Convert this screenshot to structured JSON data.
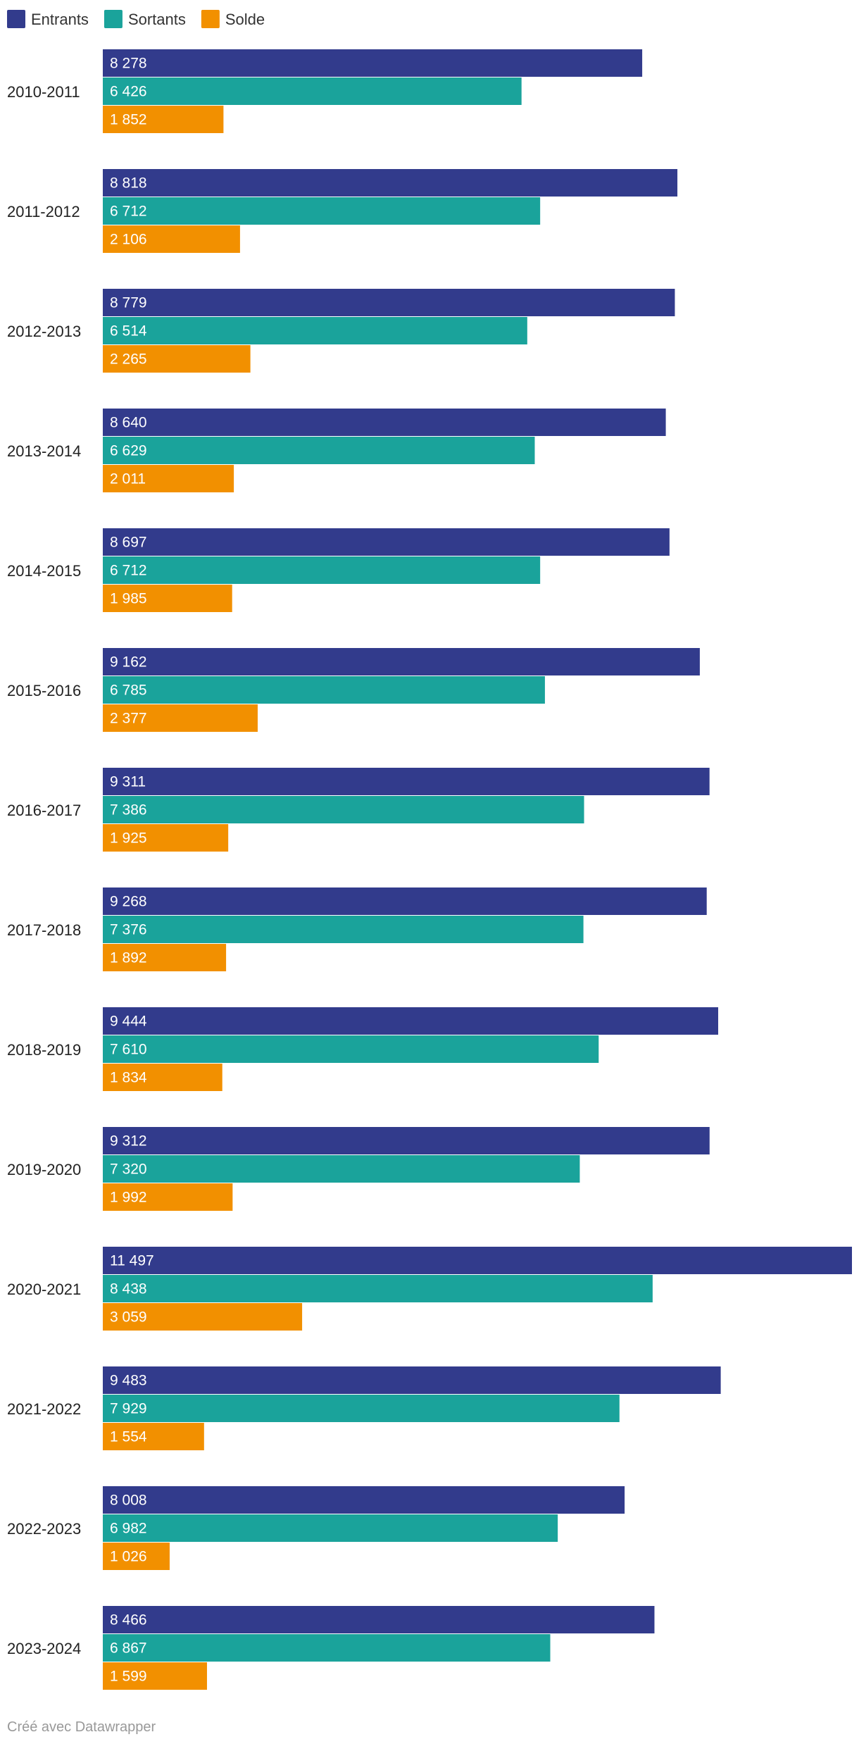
{
  "chart_data": {
    "type": "bar",
    "orientation": "horizontal",
    "categories": [
      "2010-2011",
      "2011-2012",
      "2012-2013",
      "2013-2014",
      "2014-2015",
      "2015-2016",
      "2016-2017",
      "2017-2018",
      "2018-2019",
      "2019-2020",
      "2020-2021",
      "2021-2022",
      "2022-2023",
      "2023-2024"
    ],
    "series": [
      {
        "name": "Entrants",
        "color": "#323b8c",
        "values": [
          8278,
          8818,
          8779,
          8640,
          8697,
          9162,
          9311,
          9268,
          9444,
          9312,
          11497,
          9483,
          8008,
          8466
        ],
        "labels": [
          "8 278",
          "8 818",
          "8 779",
          "8 640",
          "8 697",
          "9 162",
          "9 311",
          "9 268",
          "9 444",
          "9 312",
          "11 497",
          "9 483",
          "8 008",
          "8 466"
        ]
      },
      {
        "name": "Sortants",
        "color": "#1aa39b",
        "values": [
          6426,
          6712,
          6514,
          6629,
          6712,
          6785,
          7386,
          7376,
          7610,
          7320,
          8438,
          7929,
          6982,
          6867
        ],
        "labels": [
          "6 426",
          "6 712",
          "6 514",
          "6 629",
          "6 712",
          "6 785",
          "7 386",
          "7 376",
          "7 610",
          "7 320",
          "8 438",
          "7 929",
          "6 982",
          "6 867"
        ]
      },
      {
        "name": "Solde",
        "color": "#f29000",
        "values": [
          1852,
          2106,
          2265,
          2011,
          1985,
          2377,
          1925,
          1892,
          1834,
          1992,
          3059,
          1554,
          1026,
          1599
        ],
        "labels": [
          "1 852",
          "2 106",
          "2 265",
          "2 011",
          "1 985",
          "2 377",
          "1 925",
          "1 892",
          "1 834",
          "1 992",
          "3 059",
          "1 554",
          "1 026",
          "1 599"
        ]
      }
    ],
    "xlim": [
      0,
      11497
    ],
    "legend_position": "top-left",
    "grid": false,
    "title": "",
    "xlabel": "",
    "ylabel": ""
  },
  "footer": {
    "credit": "Créé avec Datawrapper"
  }
}
